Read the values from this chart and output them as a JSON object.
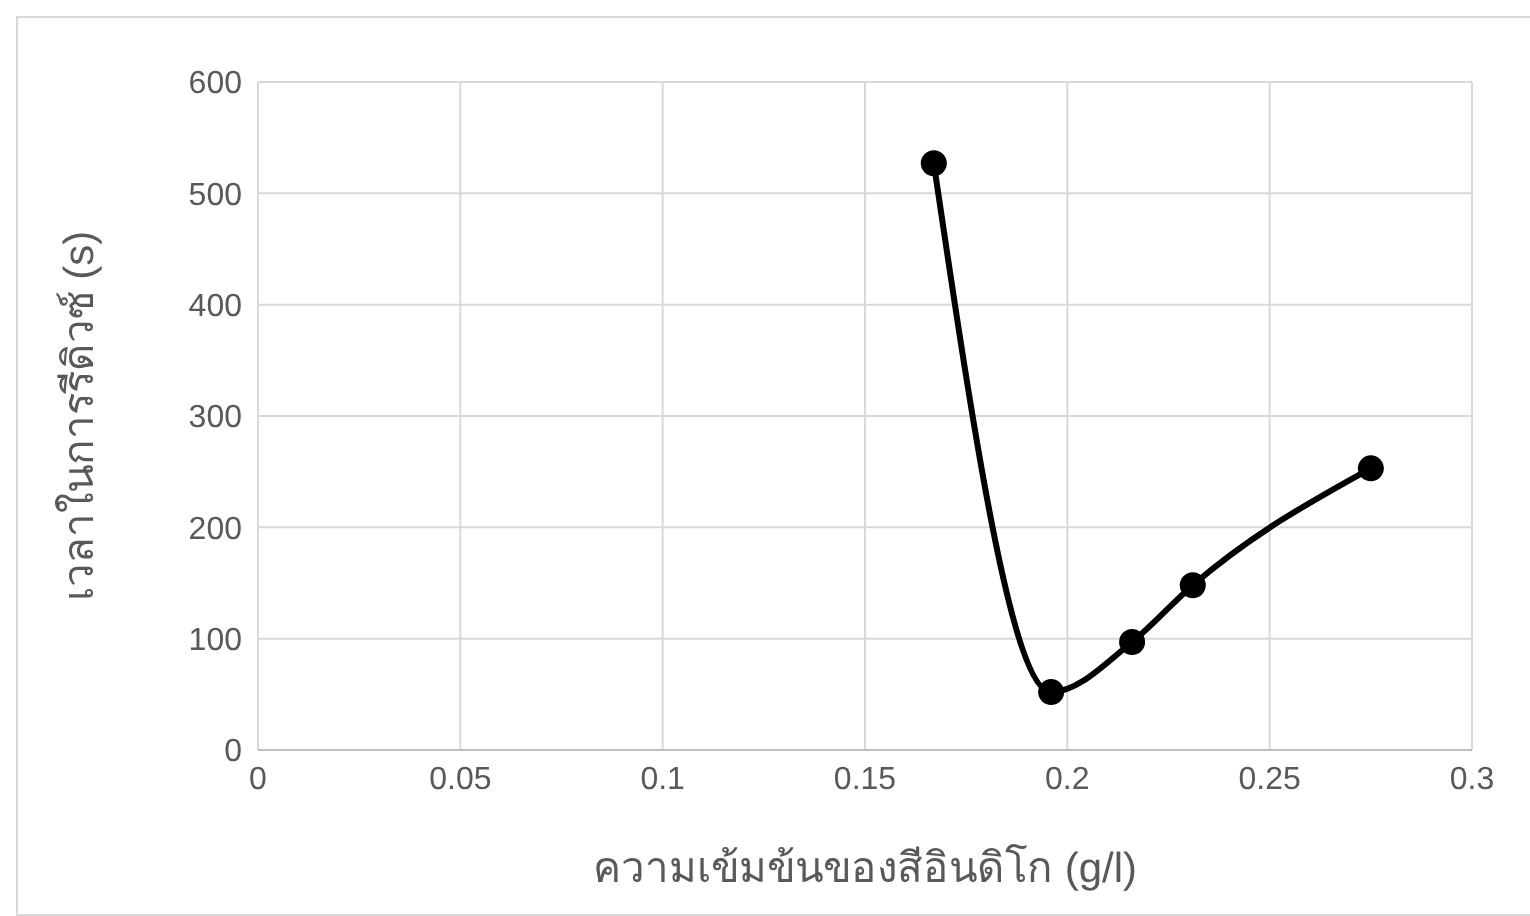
{
  "chart_data": {
    "type": "line",
    "xlabel": "ความเข้มข้นของสีอินดิโก (g/l)",
    "ylabel": "เวลาในการรีดิวซ์ (s)",
    "x": [
      0.167,
      0.196,
      0.216,
      0.231,
      0.275
    ],
    "series": [
      {
        "color": "#000000",
        "values": [
          527,
          52,
          97,
          148,
          253
        ]
      }
    ],
    "xlim": [
      0,
      0.3
    ],
    "xticks": [
      0,
      0.05,
      0.1,
      0.15,
      0.2,
      0.25,
      0.3
    ],
    "ylim": [
      0,
      600
    ],
    "yticks": [
      0,
      100,
      200,
      300,
      400,
      500,
      600
    ],
    "grid": true,
    "marker": "circle",
    "line_style": "solid",
    "legend": false
  }
}
